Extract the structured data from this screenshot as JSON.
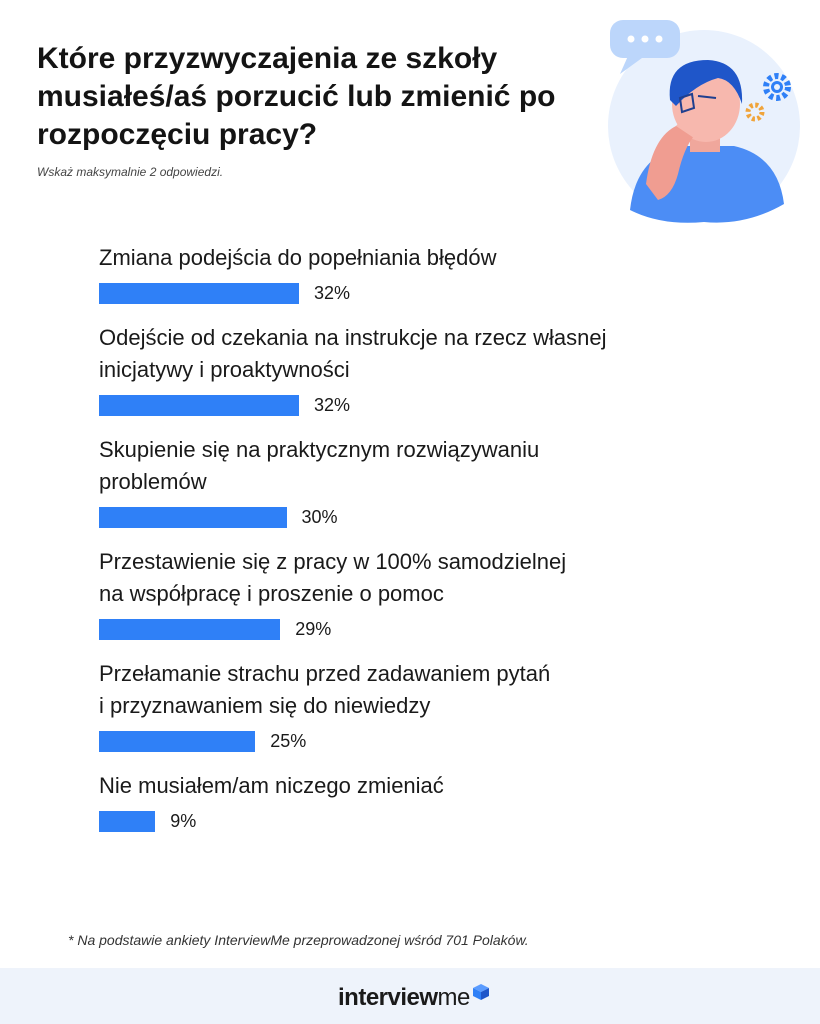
{
  "title": "Które przyzwyczajenia ze szkoły musiałeś/aś porzucić lub zmienić po rozpoczęciu pracy?",
  "subtitle": "Wskaż maksymalnie 2 odpowiedzi.",
  "chart_data": {
    "type": "bar",
    "orientation": "horizontal",
    "categories": [
      "Zmiana podejścia do popełniania błędów",
      "Odejście od czekania na instrukcje na rzecz własnej\ninicjatywy i proaktywności",
      "Skupienie się na praktycznym rozwiązywaniu\nproblemów",
      "Przestawienie się z pracy w 100% samodzielnej\nna współpracę i proszenie o pomoc",
      "Przełamanie strachu przed zadawaniem pytań\ni przyznawaniem się do niewiedzy",
      "Nie musiałem/am niczego zmieniać"
    ],
    "values": [
      32,
      32,
      30,
      29,
      25,
      9
    ],
    "value_labels": [
      "32%",
      "32%",
      "30%",
      "29%",
      "25%",
      "9%"
    ],
    "bar_color": "#2f80f7"
  },
  "footnote": "* Na podstawie ankiety InterviewMe przeprowadzonej wśród 701 Polaków.",
  "logo": {
    "bold": "interview",
    "light": "me"
  },
  "illustration_icon": "thinking-person-illustration"
}
